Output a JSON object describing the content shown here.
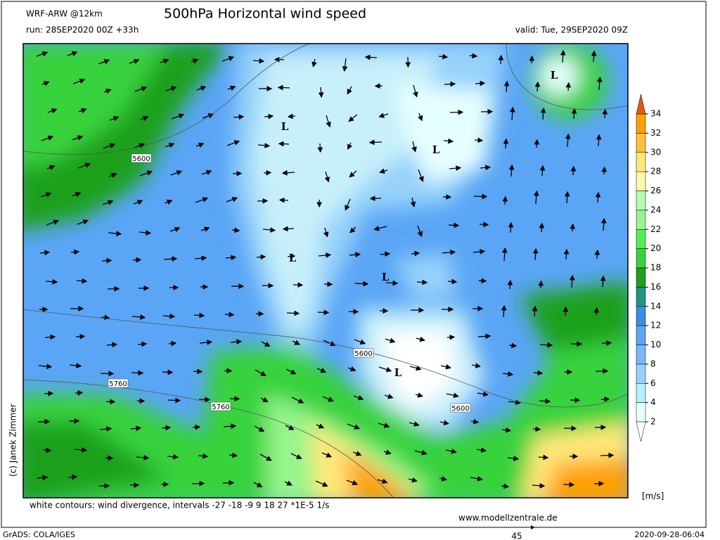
{
  "header": {
    "model": "WRF-ARW @12km",
    "title": "500hPa Horizontal wind speed",
    "run": "run: 28SEP2020 00Z +33h",
    "valid": "valid: Tue, 29SEP2020 09Z"
  },
  "map": {
    "contour_labels": [
      "5600",
      "5760",
      "5760",
      "5600",
      "5600"
    ],
    "lows": [
      "L",
      "L",
      "L",
      "L",
      "L",
      "L"
    ],
    "copyright": "(c) Janek Zimmer"
  },
  "colorbar": {
    "ticks": [
      2,
      4,
      6,
      8,
      10,
      12,
      14,
      16,
      18,
      20,
      22,
      24,
      26,
      28,
      30,
      32,
      34
    ],
    "colors": [
      "#e6ffff",
      "#b4f0fa",
      "#96d2fa",
      "#78b9fa",
      "#5aa5f5",
      "#3c8ce6",
      "#1e9682",
      "#1ea01e",
      "#37d23c",
      "#50f050",
      "#96f58c",
      "#b4fab4",
      "#fffaaa",
      "#ffe878",
      "#ffc03c",
      "#ffa000"
    ],
    "unit": "[m/s]"
  },
  "footer": {
    "note": "white contours: wind divergence, intervals -27 -18 -9 9 18 27 *1E-5 1/s",
    "website": "www.modellzentrale.de",
    "software": "GrADS: COLA/IGES",
    "timestamp": "2020-09-28-06:04",
    "reference_vector": "45"
  }
}
